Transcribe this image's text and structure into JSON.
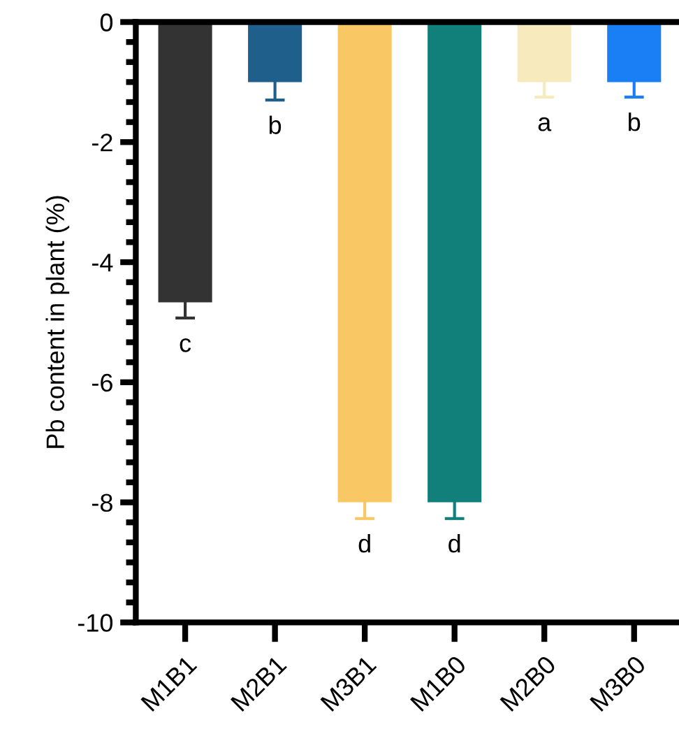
{
  "chart_data": {
    "type": "bar",
    "ylabel": "Pb content in plant (%)",
    "categories": [
      "M1B1",
      "M2B1",
      "M3B1",
      "M1B0",
      "M2B0",
      "M3B0"
    ],
    "values": [
      -4.67,
      -1.0,
      -8.0,
      -8.0,
      -1.0,
      -1.0
    ],
    "errors": [
      0.26,
      0.3,
      0.27,
      0.27,
      0.25,
      0.25
    ],
    "colors": [
      "#333333",
      "#1f5f8b",
      "#f9c864",
      "#117f7a",
      "#f7eabd",
      "#1a7ef5"
    ],
    "ylim": [
      -10,
      0
    ],
    "yticks": [
      -10,
      -8,
      -6,
      -4,
      -2,
      0
    ],
    "grid": false,
    "annotations": [
      "c",
      "b",
      "d",
      "d",
      "a",
      "b"
    ]
  }
}
